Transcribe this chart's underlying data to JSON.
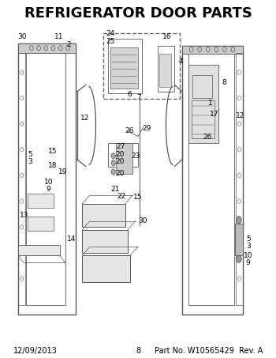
{
  "title": "REFRIGERATOR DOOR PARTS",
  "title_fontsize": 13,
  "title_fontweight": "bold",
  "footer_left": "12/09/2013",
  "footer_center": "8",
  "footer_right": "Part No. W10565429  Rev. A",
  "footer_fontsize": 7,
  "bg_color": "#ffffff",
  "line_color": "#555555",
  "text_color": "#000000",
  "fig_width": 3.5,
  "fig_height": 4.53,
  "dpi": 100
}
